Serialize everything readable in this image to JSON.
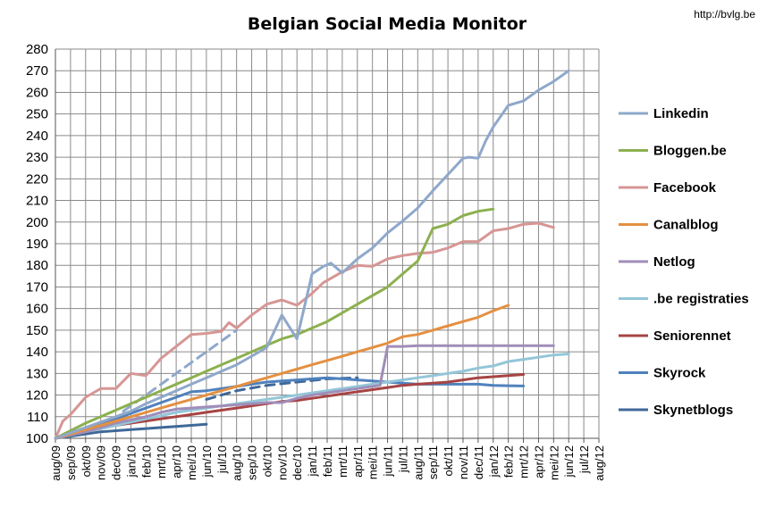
{
  "header": {
    "url": "http://bvlg.be"
  },
  "chart_data": {
    "type": "line",
    "title": "Belgian Social Media Monitor",
    "xlabel": "",
    "ylabel": "",
    "ylim": [
      100,
      280
    ],
    "y_ticks": [
      100,
      110,
      120,
      130,
      140,
      150,
      160,
      170,
      180,
      190,
      200,
      210,
      220,
      230,
      240,
      250,
      260,
      270,
      280
    ],
    "grid": true,
    "legend_position": "right",
    "categories": [
      "aug/09",
      "sep/09",
      "okt/09",
      "nov/09",
      "dec/09",
      "jan/10",
      "feb/10",
      "mrt/10",
      "apr/10",
      "mei/10",
      "jun/10",
      "jul/10",
      "aug/10",
      "sep/10",
      "okt/10",
      "nov/10",
      "dec/10",
      "jan/11",
      "feb/11",
      "mrt/11",
      "apr/11",
      "mei/11",
      "jun/11",
      "jul/11",
      "aug/11",
      "sep/11",
      "okt/11",
      "nov/11",
      "dec/11",
      "jan/12",
      "feb/12",
      "mrt/12",
      "apr/12",
      "mei/12",
      "jun/12",
      "jul/12",
      "aug/12"
    ],
    "series": [
      {
        "name": "Linkedin",
        "color": "#8fa8cb",
        "points": [
          [
            0,
            100
          ],
          [
            1,
            102.5
          ],
          [
            2,
            105
          ],
          [
            3,
            107.5
          ],
          [
            4,
            110
          ],
          [
            5,
            112.5
          ],
          [
            6,
            116
          ],
          [
            7,
            119
          ],
          [
            8,
            122
          ],
          [
            9,
            125
          ],
          [
            10,
            128
          ],
          [
            11,
            131
          ],
          [
            12,
            134
          ],
          [
            13,
            138
          ],
          [
            14,
            142
          ],
          [
            15,
            157
          ],
          [
            16,
            146
          ],
          [
            17,
            176
          ],
          [
            17.75,
            179.5
          ],
          [
            18.25,
            181
          ],
          [
            19,
            176.5
          ],
          [
            20,
            183
          ],
          [
            21,
            188
          ],
          [
            22,
            195
          ],
          [
            23,
            200.5
          ],
          [
            24,
            206.5
          ],
          [
            25,
            214.5
          ],
          [
            26,
            222
          ],
          [
            27,
            229.5
          ],
          [
            27.4,
            230
          ],
          [
            28,
            229.5
          ],
          [
            28.5,
            237.5
          ],
          [
            29,
            244
          ],
          [
            30,
            254
          ],
          [
            31,
            256
          ],
          [
            32,
            261
          ],
          [
            33,
            265
          ],
          [
            34,
            270
          ]
        ]
      },
      {
        "name": "Bloggen.be",
        "color": "#8cb04f",
        "points": [
          [
            0,
            100
          ],
          [
            1,
            103.5
          ],
          [
            2,
            107
          ],
          [
            3,
            110
          ],
          [
            4,
            113
          ],
          [
            5,
            116
          ],
          [
            6,
            119
          ],
          [
            7,
            122
          ],
          [
            8,
            125
          ],
          [
            9,
            128
          ],
          [
            10,
            131
          ],
          [
            11,
            134
          ],
          [
            12,
            137
          ],
          [
            13,
            140
          ],
          [
            14,
            143
          ],
          [
            15,
            146
          ],
          [
            16,
            148
          ],
          [
            17,
            151
          ],
          [
            18,
            154
          ],
          [
            19,
            158
          ],
          [
            20,
            162
          ],
          [
            21,
            166
          ],
          [
            22,
            170
          ],
          [
            23,
            176
          ],
          [
            24,
            182
          ],
          [
            25,
            197
          ],
          [
            26,
            199
          ],
          [
            27,
            203
          ],
          [
            28,
            205
          ],
          [
            29,
            206
          ]
        ]
      },
      {
        "name": "Facebook",
        "color": "#d69694",
        "points": [
          [
            0,
            100
          ],
          [
            0.5,
            108
          ],
          [
            1,
            111
          ],
          [
            2,
            119
          ],
          [
            3,
            123
          ],
          [
            3.5,
            123
          ],
          [
            4,
            123
          ],
          [
            5,
            130
          ],
          [
            6,
            129
          ],
          [
            7,
            137
          ],
          [
            8,
            142.5
          ],
          [
            9,
            148
          ],
          [
            10,
            148.5
          ],
          [
            11,
            149.5
          ],
          [
            11.5,
            153.5
          ],
          [
            12,
            151
          ],
          [
            13,
            157
          ],
          [
            14,
            162
          ],
          [
            15,
            164
          ],
          [
            16,
            161.5
          ],
          [
            17,
            167
          ],
          [
            17.75,
            172
          ],
          [
            18,
            173
          ],
          [
            19,
            177
          ],
          [
            20,
            180
          ],
          [
            21,
            179.5
          ],
          [
            22,
            183
          ],
          [
            23,
            184.5
          ],
          [
            24,
            185.5
          ],
          [
            25,
            186
          ],
          [
            26,
            188
          ],
          [
            27,
            191
          ],
          [
            28,
            191
          ],
          [
            29,
            196
          ],
          [
            30,
            197
          ],
          [
            31,
            199
          ],
          [
            32,
            199.5
          ],
          [
            33,
            197.5
          ]
        ]
      },
      {
        "name": "Canalblog",
        "color": "#e49042",
        "points": [
          [
            0,
            100
          ],
          [
            1,
            102
          ],
          [
            2,
            104
          ],
          [
            3,
            106
          ],
          [
            4,
            108
          ],
          [
            5,
            110
          ],
          [
            6,
            112
          ],
          [
            7,
            114
          ],
          [
            8,
            116
          ],
          [
            9,
            118
          ],
          [
            10,
            120
          ],
          [
            11,
            122
          ],
          [
            12,
            124
          ],
          [
            13,
            126
          ],
          [
            14,
            128
          ],
          [
            15,
            130
          ],
          [
            16,
            132
          ],
          [
            17,
            134
          ],
          [
            18,
            136
          ],
          [
            19,
            138
          ],
          [
            20,
            140
          ],
          [
            21,
            142
          ],
          [
            22,
            144
          ],
          [
            23,
            147
          ],
          [
            24,
            148
          ],
          [
            25,
            150
          ],
          [
            26,
            152
          ],
          [
            27,
            154
          ],
          [
            28,
            156
          ],
          [
            29,
            159
          ],
          [
            30,
            161.5
          ]
        ]
      },
      {
        "name": "Netlog",
        "color": "#a08db8",
        "points": [
          [
            0,
            100
          ],
          [
            1,
            101.5
          ],
          [
            2,
            103
          ],
          [
            3,
            105
          ],
          [
            4,
            107
          ],
          [
            5,
            108.5
          ],
          [
            6,
            110
          ],
          [
            7,
            112
          ],
          [
            8,
            113.5
          ],
          [
            9,
            114
          ],
          [
            10,
            114.5
          ],
          [
            11,
            115
          ],
          [
            12,
            115.5
          ],
          [
            13,
            116
          ],
          [
            14,
            116.5
          ],
          [
            15,
            116.5
          ],
          [
            16,
            118.5
          ],
          [
            17,
            120
          ],
          [
            18,
            121
          ],
          [
            19,
            122
          ],
          [
            20,
            123
          ],
          [
            21,
            124
          ],
          [
            21.5,
            124.5
          ],
          [
            22,
            142.5
          ],
          [
            23,
            142.5
          ],
          [
            24,
            142.8
          ],
          [
            25,
            142.8
          ],
          [
            26,
            142.8
          ],
          [
            27,
            142.8
          ],
          [
            28,
            142.8
          ],
          [
            29,
            142.8
          ],
          [
            30,
            142.8
          ],
          [
            31,
            142.8
          ],
          [
            32,
            142.8
          ],
          [
            33,
            142.8
          ]
        ]
      },
      {
        "name": ".be registraties",
        "color": "#93c6d8",
        "points": [
          [
            0,
            100
          ],
          [
            1,
            101.5
          ],
          [
            2,
            103
          ],
          [
            3,
            104.5
          ],
          [
            4,
            106
          ],
          [
            5,
            107.5
          ],
          [
            6,
            109
          ],
          [
            7,
            110.5
          ],
          [
            8,
            112
          ],
          [
            9,
            113
          ],
          [
            10,
            114
          ],
          [
            11,
            115
          ],
          [
            12,
            116
          ],
          [
            13,
            117
          ],
          [
            14,
            118
          ],
          [
            15,
            119
          ],
          [
            16,
            120
          ],
          [
            17,
            121
          ],
          [
            18,
            122
          ],
          [
            19,
            123
          ],
          [
            20,
            124
          ],
          [
            21,
            125
          ],
          [
            22,
            126
          ],
          [
            23,
            127
          ],
          [
            24,
            128
          ],
          [
            25,
            129
          ],
          [
            26,
            130
          ],
          [
            27,
            131
          ],
          [
            28,
            132.5
          ],
          [
            29,
            133.5
          ],
          [
            30,
            135.5
          ],
          [
            31,
            136.5
          ],
          [
            32,
            137.5
          ],
          [
            33,
            138.5
          ],
          [
            34,
            139
          ]
        ]
      },
      {
        "name": "Seniorennet",
        "color": "#a74444",
        "points": [
          [
            0,
            100
          ],
          [
            1,
            101.5
          ],
          [
            2,
            103
          ],
          [
            3,
            104.5
          ],
          [
            4,
            106
          ],
          [
            5,
            107
          ],
          [
            6,
            108
          ],
          [
            7,
            109
          ],
          [
            8,
            110
          ],
          [
            9,
            111
          ],
          [
            10,
            112
          ],
          [
            11,
            113
          ],
          [
            12,
            114
          ],
          [
            13,
            115
          ],
          [
            14,
            116
          ],
          [
            15,
            117
          ],
          [
            16,
            117.5
          ],
          [
            17,
            118.5
          ],
          [
            18,
            119.5
          ],
          [
            19,
            120.5
          ],
          [
            20,
            121.5
          ],
          [
            21,
            122.5
          ],
          [
            22,
            123.5
          ],
          [
            23,
            124.5
          ],
          [
            24,
            125
          ],
          [
            25,
            125.5
          ],
          [
            26,
            126
          ],
          [
            27,
            127
          ],
          [
            28,
            128
          ],
          [
            29,
            128.5
          ],
          [
            30,
            129
          ],
          [
            31,
            129.5
          ]
        ]
      },
      {
        "name": "Skyrock",
        "color": "#4f81bd",
        "points": [
          [
            0,
            100
          ],
          [
            1,
            102
          ],
          [
            2,
            104
          ],
          [
            3,
            106.5
          ],
          [
            4,
            109
          ],
          [
            5,
            111.5
          ],
          [
            6,
            114
          ],
          [
            7,
            116.5
          ],
          [
            8,
            119
          ],
          [
            9,
            121.5
          ],
          [
            10,
            122
          ],
          [
            11,
            123
          ],
          [
            12,
            124
          ],
          [
            13,
            125
          ],
          [
            14,
            126
          ],
          [
            15,
            126.5
          ],
          [
            16,
            127
          ],
          [
            17,
            127.5
          ],
          [
            18,
            128
          ],
          [
            19,
            127.5
          ],
          [
            20,
            127
          ],
          [
            21,
            126.5
          ],
          [
            22,
            126
          ],
          [
            23,
            125.5
          ],
          [
            24,
            125
          ],
          [
            25,
            125
          ],
          [
            26,
            125
          ],
          [
            27,
            125
          ],
          [
            28,
            125
          ],
          [
            29,
            124.5
          ],
          [
            30,
            124.3
          ],
          [
            31,
            124.2
          ]
        ]
      },
      {
        "name": "Skynetblogs",
        "color": "#3f6899",
        "points": [
          [
            0,
            100
          ],
          [
            1,
            101
          ],
          [
            2,
            102
          ],
          [
            3,
            103
          ],
          [
            4,
            103.5
          ],
          [
            5,
            104
          ],
          [
            6,
            104.5
          ],
          [
            7,
            105
          ],
          [
            8,
            105.5
          ],
          [
            9,
            106
          ],
          [
            10,
            106.5
          ]
        ]
      }
    ],
    "projections": [
      {
        "series": "Linkedin",
        "color": "#8fa8cb",
        "points": [
          [
            4.5,
            112.5
          ],
          [
            6,
            120
          ],
          [
            8,
            130
          ],
          [
            10,
            140
          ],
          [
            12,
            150
          ]
        ]
      },
      {
        "series": "Skynetblogs",
        "color": "#3f6899",
        "points": [
          [
            10,
            118
          ],
          [
            12,
            122
          ],
          [
            14,
            124.5
          ],
          [
            16,
            126
          ],
          [
            18,
            127.5
          ],
          [
            20,
            128
          ]
        ]
      }
    ]
  }
}
